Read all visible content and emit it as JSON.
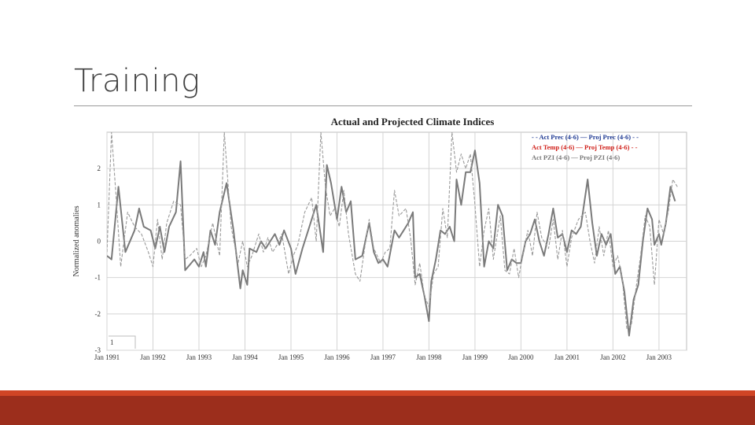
{
  "slide": {
    "title": "Training"
  },
  "chart_data": {
    "type": "line",
    "title": "Actual and Projected Climate Indices",
    "xlabel": "",
    "ylabel": "Normalized anomalies",
    "xlim": [
      1991.0,
      2003.6
    ],
    "ylim": [
      -3,
      3
    ],
    "x_ticks": [
      {
        "label": "Jan 1991",
        "x": 1991
      },
      {
        "label": "Jan 1992",
        "x": 1992
      },
      {
        "label": "Jan 1993",
        "x": 1993
      },
      {
        "label": "Jan 1994",
        "x": 1994
      },
      {
        "label": "Jan 1995",
        "x": 1995
      },
      {
        "label": "Jan 1996",
        "x": 1996
      },
      {
        "label": "Jan 1997",
        "x": 1997
      },
      {
        "label": "Jan 1998",
        "x": 1998
      },
      {
        "label": "Jan 1999",
        "x": 1999
      },
      {
        "label": "Jan 2000",
        "x": 2000
      },
      {
        "label": "Jan 2001",
        "x": 2001
      },
      {
        "label": "Jan 2002",
        "x": 2002
      },
      {
        "label": "Jan 2003",
        "x": 2003
      }
    ],
    "y_ticks": [
      {
        "label": "2",
        "y": 2
      },
      {
        "label": "1",
        "y": 1
      },
      {
        "label": "0",
        "y": 0
      },
      {
        "label": "-1",
        "y": -1
      },
      {
        "label": "-2",
        "y": -2
      },
      {
        "label": "-3",
        "y": -3
      }
    ],
    "corner_label": "1",
    "legend": [
      {
        "text": "- - Act Prec (4-6) — Proj Prec (4-6) - -",
        "color": "#1f3a93"
      },
      {
        "text": "Act Temp (4-6) — Proj Temp (4-6) - -",
        "color": "#d0201a"
      },
      {
        "text": "Act PZI (4-6) — Proj PZI (4-6)",
        "color": "#777777"
      }
    ],
    "series": [
      {
        "name": "Act PZI (4-6)",
        "style": "solid",
        "color": "#7a7a7a",
        "points": [
          [
            1991.0,
            -0.4
          ],
          [
            1991.1,
            -0.5
          ],
          [
            1991.25,
            1.5
          ],
          [
            1991.4,
            -0.3
          ],
          [
            1991.6,
            0.3
          ],
          [
            1991.7,
            0.9
          ],
          [
            1991.8,
            0.4
          ],
          [
            1991.95,
            0.3
          ],
          [
            1992.05,
            -0.2
          ],
          [
            1992.15,
            0.4
          ],
          [
            1992.25,
            -0.3
          ],
          [
            1992.35,
            0.4
          ],
          [
            1992.5,
            0.8
          ],
          [
            1992.6,
            2.2
          ],
          [
            1992.7,
            -0.8
          ],
          [
            1992.9,
            -0.5
          ],
          [
            1993.0,
            -0.7
          ],
          [
            1993.1,
            -0.3
          ],
          [
            1993.15,
            -0.7
          ],
          [
            1993.25,
            0.3
          ],
          [
            1993.35,
            -0.1
          ],
          [
            1993.45,
            0.8
          ],
          [
            1993.6,
            1.6
          ],
          [
            1993.75,
            0.3
          ],
          [
            1993.9,
            -1.3
          ],
          [
            1993.95,
            -0.8
          ],
          [
            1994.05,
            -1.2
          ],
          [
            1994.1,
            -0.2
          ],
          [
            1994.25,
            -0.3
          ],
          [
            1994.35,
            0.0
          ],
          [
            1994.45,
            -0.2
          ],
          [
            1994.55,
            0.0
          ],
          [
            1994.65,
            0.2
          ],
          [
            1994.75,
            -0.1
          ],
          [
            1994.85,
            0.3
          ],
          [
            1995.0,
            -0.2
          ],
          [
            1995.1,
            -0.9
          ],
          [
            1995.25,
            -0.2
          ],
          [
            1995.4,
            0.4
          ],
          [
            1995.55,
            1.0
          ],
          [
            1995.7,
            -0.3
          ],
          [
            1995.78,
            2.1
          ],
          [
            1995.87,
            1.6
          ],
          [
            1996.0,
            0.6
          ],
          [
            1996.1,
            1.5
          ],
          [
            1996.2,
            0.8
          ],
          [
            1996.3,
            1.1
          ],
          [
            1996.4,
            -0.5
          ],
          [
            1996.55,
            -0.4
          ],
          [
            1996.7,
            0.5
          ],
          [
            1996.8,
            -0.3
          ],
          [
            1996.9,
            -0.6
          ],
          [
            1997.0,
            -0.5
          ],
          [
            1997.1,
            -0.7
          ],
          [
            1997.25,
            0.3
          ],
          [
            1997.35,
            0.1
          ],
          [
            1997.45,
            0.3
          ],
          [
            1997.55,
            0.5
          ],
          [
            1997.65,
            0.8
          ],
          [
            1997.7,
            -1.0
          ],
          [
            1997.8,
            -0.9
          ],
          [
            1997.9,
            -1.5
          ],
          [
            1998.0,
            -2.2
          ],
          [
            1998.05,
            -1.1
          ],
          [
            1998.15,
            -0.5
          ],
          [
            1998.25,
            0.3
          ],
          [
            1998.35,
            0.2
          ],
          [
            1998.45,
            0.4
          ],
          [
            1998.55,
            0.0
          ],
          [
            1998.6,
            1.7
          ],
          [
            1998.7,
            1.0
          ],
          [
            1998.8,
            1.9
          ],
          [
            1998.9,
            1.9
          ],
          [
            1999.0,
            2.5
          ],
          [
            1999.1,
            1.6
          ],
          [
            1999.2,
            -0.7
          ],
          [
            1999.3,
            0.0
          ],
          [
            1999.4,
            -0.2
          ],
          [
            1999.5,
            1.0
          ],
          [
            1999.6,
            0.7
          ],
          [
            1999.7,
            -0.8
          ],
          [
            1999.8,
            -0.5
          ],
          [
            1999.9,
            -0.6
          ],
          [
            2000.0,
            -0.6
          ],
          [
            2000.1,
            0.0
          ],
          [
            2000.2,
            0.2
          ],
          [
            2000.3,
            0.6
          ],
          [
            2000.4,
            0.0
          ],
          [
            2000.5,
            -0.4
          ],
          [
            2000.6,
            0.2
          ],
          [
            2000.7,
            0.9
          ],
          [
            2000.8,
            0.1
          ],
          [
            2000.9,
            0.2
          ],
          [
            2001.0,
            -0.3
          ],
          [
            2001.1,
            0.3
          ],
          [
            2001.2,
            0.2
          ],
          [
            2001.3,
            0.4
          ],
          [
            2001.45,
            1.7
          ],
          [
            2001.55,
            0.5
          ],
          [
            2001.65,
            -0.4
          ],
          [
            2001.75,
            0.2
          ],
          [
            2001.85,
            -0.1
          ],
          [
            2001.95,
            0.2
          ],
          [
            2002.05,
            -0.9
          ],
          [
            2002.15,
            -0.7
          ],
          [
            2002.25,
            -1.4
          ],
          [
            2002.35,
            -2.6
          ],
          [
            2002.45,
            -1.6
          ],
          [
            2002.55,
            -1.2
          ],
          [
            2002.65,
            0.0
          ],
          [
            2002.75,
            0.9
          ],
          [
            2002.85,
            0.6
          ],
          [
            2002.9,
            -0.1
          ],
          [
            2003.0,
            0.2
          ],
          [
            2003.05,
            -0.1
          ],
          [
            2003.15,
            0.5
          ],
          [
            2003.25,
            1.5
          ],
          [
            2003.35,
            1.1
          ]
        ]
      },
      {
        "name": "Proj PZI (4-6)",
        "style": "dashed",
        "color": "#9a9a9a",
        "points": [
          [
            1991.0,
            -0.3
          ],
          [
            1991.1,
            3.0
          ],
          [
            1991.2,
            1.2
          ],
          [
            1991.3,
            -0.7
          ],
          [
            1991.45,
            0.8
          ],
          [
            1991.6,
            0.4
          ],
          [
            1991.75,
            0.2
          ],
          [
            1991.9,
            -0.3
          ],
          [
            1992.0,
            -0.7
          ],
          [
            1992.1,
            0.6
          ],
          [
            1992.2,
            -0.5
          ],
          [
            1992.3,
            0.5
          ],
          [
            1992.45,
            1.1
          ],
          [
            1992.6,
            1.0
          ],
          [
            1992.7,
            -0.5
          ],
          [
            1992.8,
            -0.4
          ],
          [
            1992.95,
            -0.2
          ],
          [
            1993.05,
            -0.7
          ],
          [
            1993.15,
            -0.4
          ],
          [
            1993.3,
            0.5
          ],
          [
            1993.45,
            -0.4
          ],
          [
            1993.55,
            3.0
          ],
          [
            1993.7,
            0.4
          ],
          [
            1993.85,
            -0.6
          ],
          [
            1993.95,
            0.0
          ],
          [
            1994.05,
            -0.7
          ],
          [
            1994.15,
            -0.4
          ],
          [
            1994.3,
            0.2
          ],
          [
            1994.4,
            -0.3
          ],
          [
            1994.5,
            0.1
          ],
          [
            1994.6,
            -0.3
          ],
          [
            1994.7,
            -0.1
          ],
          [
            1994.8,
            0.2
          ],
          [
            1994.95,
            -0.9
          ],
          [
            1995.05,
            -0.4
          ],
          [
            1995.15,
            -0.1
          ],
          [
            1995.3,
            0.8
          ],
          [
            1995.45,
            1.2
          ],
          [
            1995.55,
            0.0
          ],
          [
            1995.65,
            3.0
          ],
          [
            1995.75,
            1.5
          ],
          [
            1995.85,
            0.7
          ],
          [
            1995.95,
            0.9
          ],
          [
            1996.05,
            0.4
          ],
          [
            1996.15,
            1.4
          ],
          [
            1996.25,
            0.2
          ],
          [
            1996.4,
            -0.9
          ],
          [
            1996.5,
            -1.1
          ],
          [
            1996.6,
            -0.2
          ],
          [
            1996.7,
            0.6
          ],
          [
            1996.8,
            -0.2
          ],
          [
            1996.95,
            -0.6
          ],
          [
            1997.05,
            -0.3
          ],
          [
            1997.15,
            -0.2
          ],
          [
            1997.25,
            1.4
          ],
          [
            1997.35,
            0.7
          ],
          [
            1997.5,
            0.9
          ],
          [
            1997.6,
            0.1
          ],
          [
            1997.7,
            -1.2
          ],
          [
            1997.8,
            -0.6
          ],
          [
            1997.9,
            -1.5
          ],
          [
            1998.0,
            -1.8
          ],
          [
            1998.1,
            -0.9
          ],
          [
            1998.2,
            -0.7
          ],
          [
            1998.3,
            0.9
          ],
          [
            1998.4,
            0.1
          ],
          [
            1998.5,
            3.0
          ],
          [
            1998.6,
            1.9
          ],
          [
            1998.7,
            2.4
          ],
          [
            1998.8,
            2.0
          ],
          [
            1998.9,
            2.4
          ],
          [
            1999.0,
            1.0
          ],
          [
            1999.1,
            -0.7
          ],
          [
            1999.2,
            0.3
          ],
          [
            1999.3,
            0.9
          ],
          [
            1999.4,
            -0.5
          ],
          [
            1999.55,
            0.7
          ],
          [
            1999.65,
            -0.8
          ],
          [
            1999.75,
            -0.9
          ],
          [
            1999.85,
            -0.2
          ],
          [
            1999.95,
            -1.0
          ],
          [
            2000.05,
            -0.3
          ],
          [
            2000.15,
            0.3
          ],
          [
            2000.25,
            -0.4
          ],
          [
            2000.35,
            0.8
          ],
          [
            2000.45,
            0.1
          ],
          [
            2000.6,
            -0.2
          ],
          [
            2000.7,
            0.6
          ],
          [
            2000.8,
            -0.5
          ],
          [
            2000.9,
            0.3
          ],
          [
            2001.0,
            -0.7
          ],
          [
            2001.1,
            0.1
          ],
          [
            2001.25,
            0.6
          ],
          [
            2001.4,
            0.8
          ],
          [
            2001.5,
            0.0
          ],
          [
            2001.6,
            -0.6
          ],
          [
            2001.7,
            0.4
          ],
          [
            2001.8,
            -0.4
          ],
          [
            2001.9,
            0.3
          ],
          [
            2002.0,
            -0.7
          ],
          [
            2002.1,
            -0.4
          ],
          [
            2002.2,
            -1.0
          ],
          [
            2002.3,
            -2.4
          ],
          [
            2002.4,
            -2.3
          ],
          [
            2002.5,
            -1.3
          ],
          [
            2002.6,
            -0.4
          ],
          [
            2002.7,
            0.7
          ],
          [
            2002.8,
            0.4
          ],
          [
            2002.9,
            -1.2
          ],
          [
            2003.0,
            0.6
          ],
          [
            2003.1,
            0.2
          ],
          [
            2003.2,
            0.8
          ],
          [
            2003.3,
            1.7
          ],
          [
            2003.4,
            1.5
          ]
        ]
      }
    ]
  }
}
